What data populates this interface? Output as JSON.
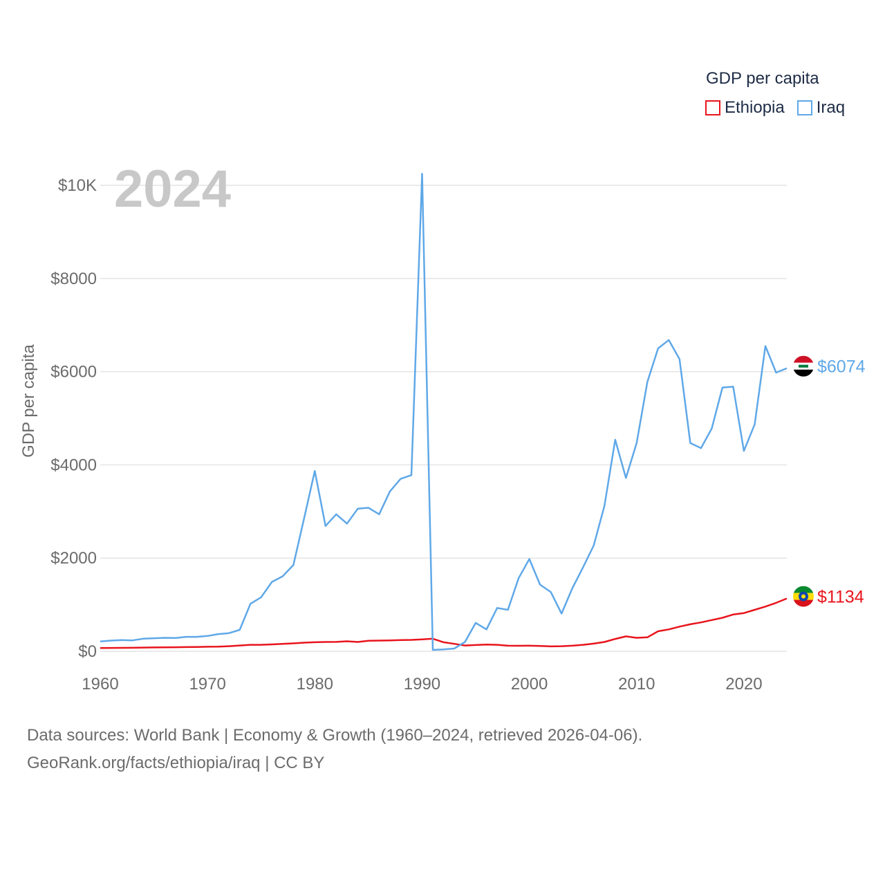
{
  "legend": {
    "title": "GDP per capita"
  },
  "source": {
    "line1": "Data sources: World Bank | Economy & Growth (1960–2024, retrieved 2026-04-06).",
    "line2": "GeoRank.org/facts/ethiopia/iraq | CC BY"
  },
  "chart_data": {
    "type": "line",
    "title": "GDP per capita",
    "year_label": "2024",
    "xlabel": "",
    "ylabel": "GDP per capita",
    "xlim": [
      1960,
      2024
    ],
    "ylim": [
      0,
      10000
    ],
    "x_ticks": [
      1960,
      1970,
      1980,
      1990,
      2000,
      2010,
      2020
    ],
    "y_ticks": [
      {
        "value": 0,
        "label": "$0"
      },
      {
        "value": 2000,
        "label": "$2000"
      },
      {
        "value": 4000,
        "label": "$4000"
      },
      {
        "value": 6000,
        "label": "$6000"
      },
      {
        "value": 8000,
        "label": "$8000"
      },
      {
        "value": 10000,
        "label": "$10K"
      }
    ],
    "grid": true,
    "legend_position": "top-right",
    "series": [
      {
        "name": "Ethiopia",
        "color": "#e8141c",
        "end_label": "$1134",
        "flag": "ethiopia-flag-icon",
        "x": [
          1960,
          1961,
          1962,
          1963,
          1964,
          1965,
          1966,
          1967,
          1968,
          1969,
          1970,
          1971,
          1972,
          1973,
          1974,
          1975,
          1976,
          1977,
          1978,
          1979,
          1980,
          1981,
          1982,
          1983,
          1984,
          1985,
          1986,
          1987,
          1988,
          1989,
          1990,
          1991,
          1992,
          1993,
          1994,
          1995,
          1996,
          1997,
          1998,
          1999,
          2000,
          2001,
          2002,
          2003,
          2004,
          2005,
          2006,
          2007,
          2008,
          2009,
          2010,
          2011,
          2012,
          2013,
          2014,
          2015,
          2016,
          2017,
          2018,
          2019,
          2020,
          2021,
          2022,
          2023,
          2024
        ],
        "values": [
          70,
          72,
          74,
          76,
          80,
          83,
          86,
          88,
          90,
          93,
          98,
          100,
          110,
          125,
          140,
          140,
          148,
          160,
          170,
          185,
          195,
          200,
          202,
          215,
          200,
          225,
          230,
          235,
          240,
          245,
          255,
          270,
          195,
          160,
          125,
          135,
          145,
          140,
          120,
          118,
          120,
          115,
          105,
          110,
          120,
          140,
          165,
          200,
          265,
          320,
          290,
          300,
          430,
          470,
          530,
          580,
          620,
          670,
          720,
          790,
          820,
          890,
          960,
          1040,
          1134
        ]
      },
      {
        "name": "Iraq",
        "color": "#5fa8e8",
        "end_label": "$6074",
        "flag": "iraq-flag-icon",
        "x": [
          1960,
          1961,
          1962,
          1963,
          1964,
          1965,
          1966,
          1967,
          1968,
          1969,
          1970,
          1971,
          1972,
          1973,
          1974,
          1975,
          1976,
          1977,
          1978,
          1979,
          1980,
          1981,
          1982,
          1983,
          1984,
          1985,
          1986,
          1987,
          1988,
          1989,
          1990,
          1991,
          1992,
          1993,
          1994,
          1995,
          1996,
          1997,
          1998,
          1999,
          2000,
          2001,
          2002,
          2003,
          2004,
          2005,
          2006,
          2007,
          2008,
          2009,
          2010,
          2011,
          2012,
          2013,
          2014,
          2015,
          2016,
          2017,
          2018,
          2019,
          2020,
          2021,
          2022,
          2023,
          2024
        ],
        "values": [
          210,
          230,
          240,
          235,
          270,
          280,
          290,
          285,
          310,
          310,
          330,
          370,
          390,
          460,
          1020,
          1160,
          1490,
          1610,
          1850,
          2850,
          3870,
          2690,
          2940,
          2740,
          3060,
          3080,
          2940,
          3430,
          3700,
          3780,
          10250,
          30,
          40,
          60,
          200,
          610,
          470,
          930,
          890,
          1570,
          1980,
          1430,
          1270,
          810,
          1350,
          1800,
          2270,
          3120,
          4540,
          3720,
          4470,
          5780,
          6500,
          6680,
          6270,
          4470,
          4360,
          4780,
          5660,
          5680,
          4300,
          4870,
          6550,
          5980,
          6074
        ]
      }
    ]
  }
}
